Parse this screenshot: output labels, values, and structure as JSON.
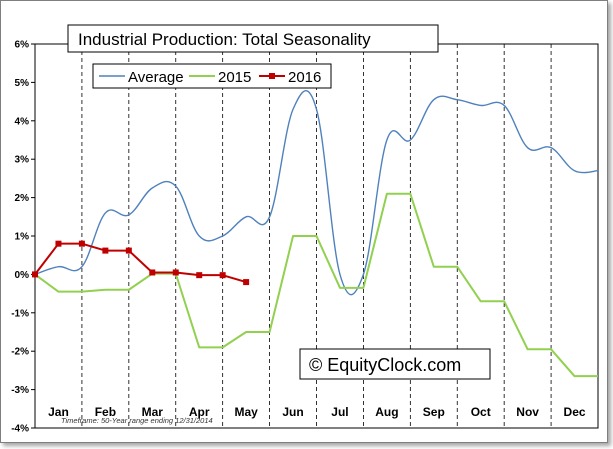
{
  "chart_data": {
    "type": "line",
    "title": "Industrial Production: Total Seasonality",
    "xlabel": "",
    "ylabel": "",
    "ylim": [
      -4,
      6
    ],
    "y_ticks": [
      -4,
      -3,
      -2,
      -1,
      0,
      1,
      2,
      3,
      4,
      5,
      6
    ],
    "y_tick_labels": [
      "-4%",
      "-3%",
      "-2%",
      "-1%",
      "0%",
      "1%",
      "2%",
      "3%",
      "4%",
      "5%",
      "6%"
    ],
    "categories": [
      "Jan",
      "Feb",
      "Mar",
      "Apr",
      "May",
      "Jun",
      "Jul",
      "Aug",
      "Sep",
      "Oct",
      "Nov",
      "Dec"
    ],
    "grid": "vertical dashed at month boundaries",
    "legend_position": "top-left",
    "series": [
      {
        "name": "Average",
        "color": "#4f81bd",
        "smooth": true,
        "markers": false,
        "x": [
          0,
          0.5,
          1,
          1.5,
          2,
          2.5,
          3,
          3.5,
          4,
          4.5,
          5,
          5.5,
          6,
          6.5,
          7,
          7.5,
          8,
          8.5,
          9,
          9.5,
          10,
          10.5,
          11,
          11.5,
          12
        ],
        "y": [
          0,
          0.2,
          0.2,
          1.6,
          1.55,
          2.25,
          2.3,
          1.0,
          1.0,
          1.5,
          1.5,
          4.3,
          4.3,
          0.0,
          0.0,
          3.5,
          3.5,
          4.55,
          4.55,
          4.4,
          4.4,
          3.3,
          3.3,
          2.7,
          2.7
        ]
      },
      {
        "name": "2015",
        "color": "#92d050",
        "smooth": false,
        "markers": false,
        "x": [
          0,
          0.5,
          1,
          1.5,
          2,
          2.5,
          3,
          3.5,
          4,
          4.5,
          5,
          5.5,
          6,
          6.5,
          7,
          7.5,
          8,
          8.5,
          9,
          9.5,
          10,
          10.5,
          11,
          11.5,
          12
        ],
        "y": [
          0,
          -0.45,
          -0.45,
          -0.4,
          -0.4,
          0.02,
          0.02,
          -1.9,
          -1.9,
          -1.5,
          -1.5,
          1.0,
          1.0,
          -0.35,
          -0.35,
          2.1,
          2.1,
          0.2,
          0.2,
          -0.7,
          -0.7,
          -1.95,
          -1.95,
          -2.65,
          -2.65
        ]
      },
      {
        "name": "2016",
        "color": "#c00000",
        "smooth": false,
        "markers": true,
        "x": [
          0,
          0.5,
          1,
          1.5,
          2,
          2.5,
          3,
          3.5,
          4,
          4.5
        ],
        "y": [
          0,
          0.8,
          0.8,
          0.62,
          0.62,
          0.05,
          0.05,
          -0.02,
          -0.02,
          -0.2
        ]
      }
    ]
  },
  "watermark": "© EquityClock.com",
  "footnote": "Timeframe: 50-Year range ending 12/31/2014"
}
